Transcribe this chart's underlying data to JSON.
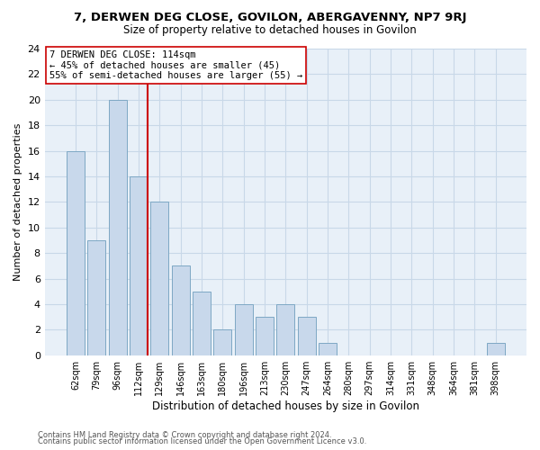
{
  "title": "7, DERWEN DEG CLOSE, GOVILON, ABERGAVENNY, NP7 9RJ",
  "subtitle": "Size of property relative to detached houses in Govilon",
  "xlabel": "Distribution of detached houses by size in Govilon",
  "ylabel": "Number of detached properties",
  "bar_labels": [
    "62sqm",
    "79sqm",
    "96sqm",
    "112sqm",
    "129sqm",
    "146sqm",
    "163sqm",
    "180sqm",
    "196sqm",
    "213sqm",
    "230sqm",
    "247sqm",
    "264sqm",
    "280sqm",
    "297sqm",
    "314sqm",
    "331sqm",
    "348sqm",
    "364sqm",
    "381sqm",
    "398sqm"
  ],
  "bar_values": [
    16,
    9,
    20,
    14,
    12,
    7,
    5,
    2,
    4,
    3,
    4,
    3,
    1,
    0,
    0,
    0,
    0,
    0,
    0,
    0,
    1
  ],
  "bar_color": "#c8d8eb",
  "bar_edge_color": "#7ea8c4",
  "highlight_line_color": "#cc0000",
  "annotation_line1": "7 DERWEN DEG CLOSE: 114sqm",
  "annotation_line2": "← 45% of detached houses are smaller (45)",
  "annotation_line3": "55% of semi-detached houses are larger (55) →",
  "ylim": [
    0,
    24
  ],
  "yticks": [
    0,
    2,
    4,
    6,
    8,
    10,
    12,
    14,
    16,
    18,
    20,
    22,
    24
  ],
  "footer_line1": "Contains HM Land Registry data © Crown copyright and database right 2024.",
  "footer_line2": "Contains public sector information licensed under the Open Government Licence v3.0.",
  "grid_color": "#c8d8e8",
  "background_color": "#e8f0f8"
}
